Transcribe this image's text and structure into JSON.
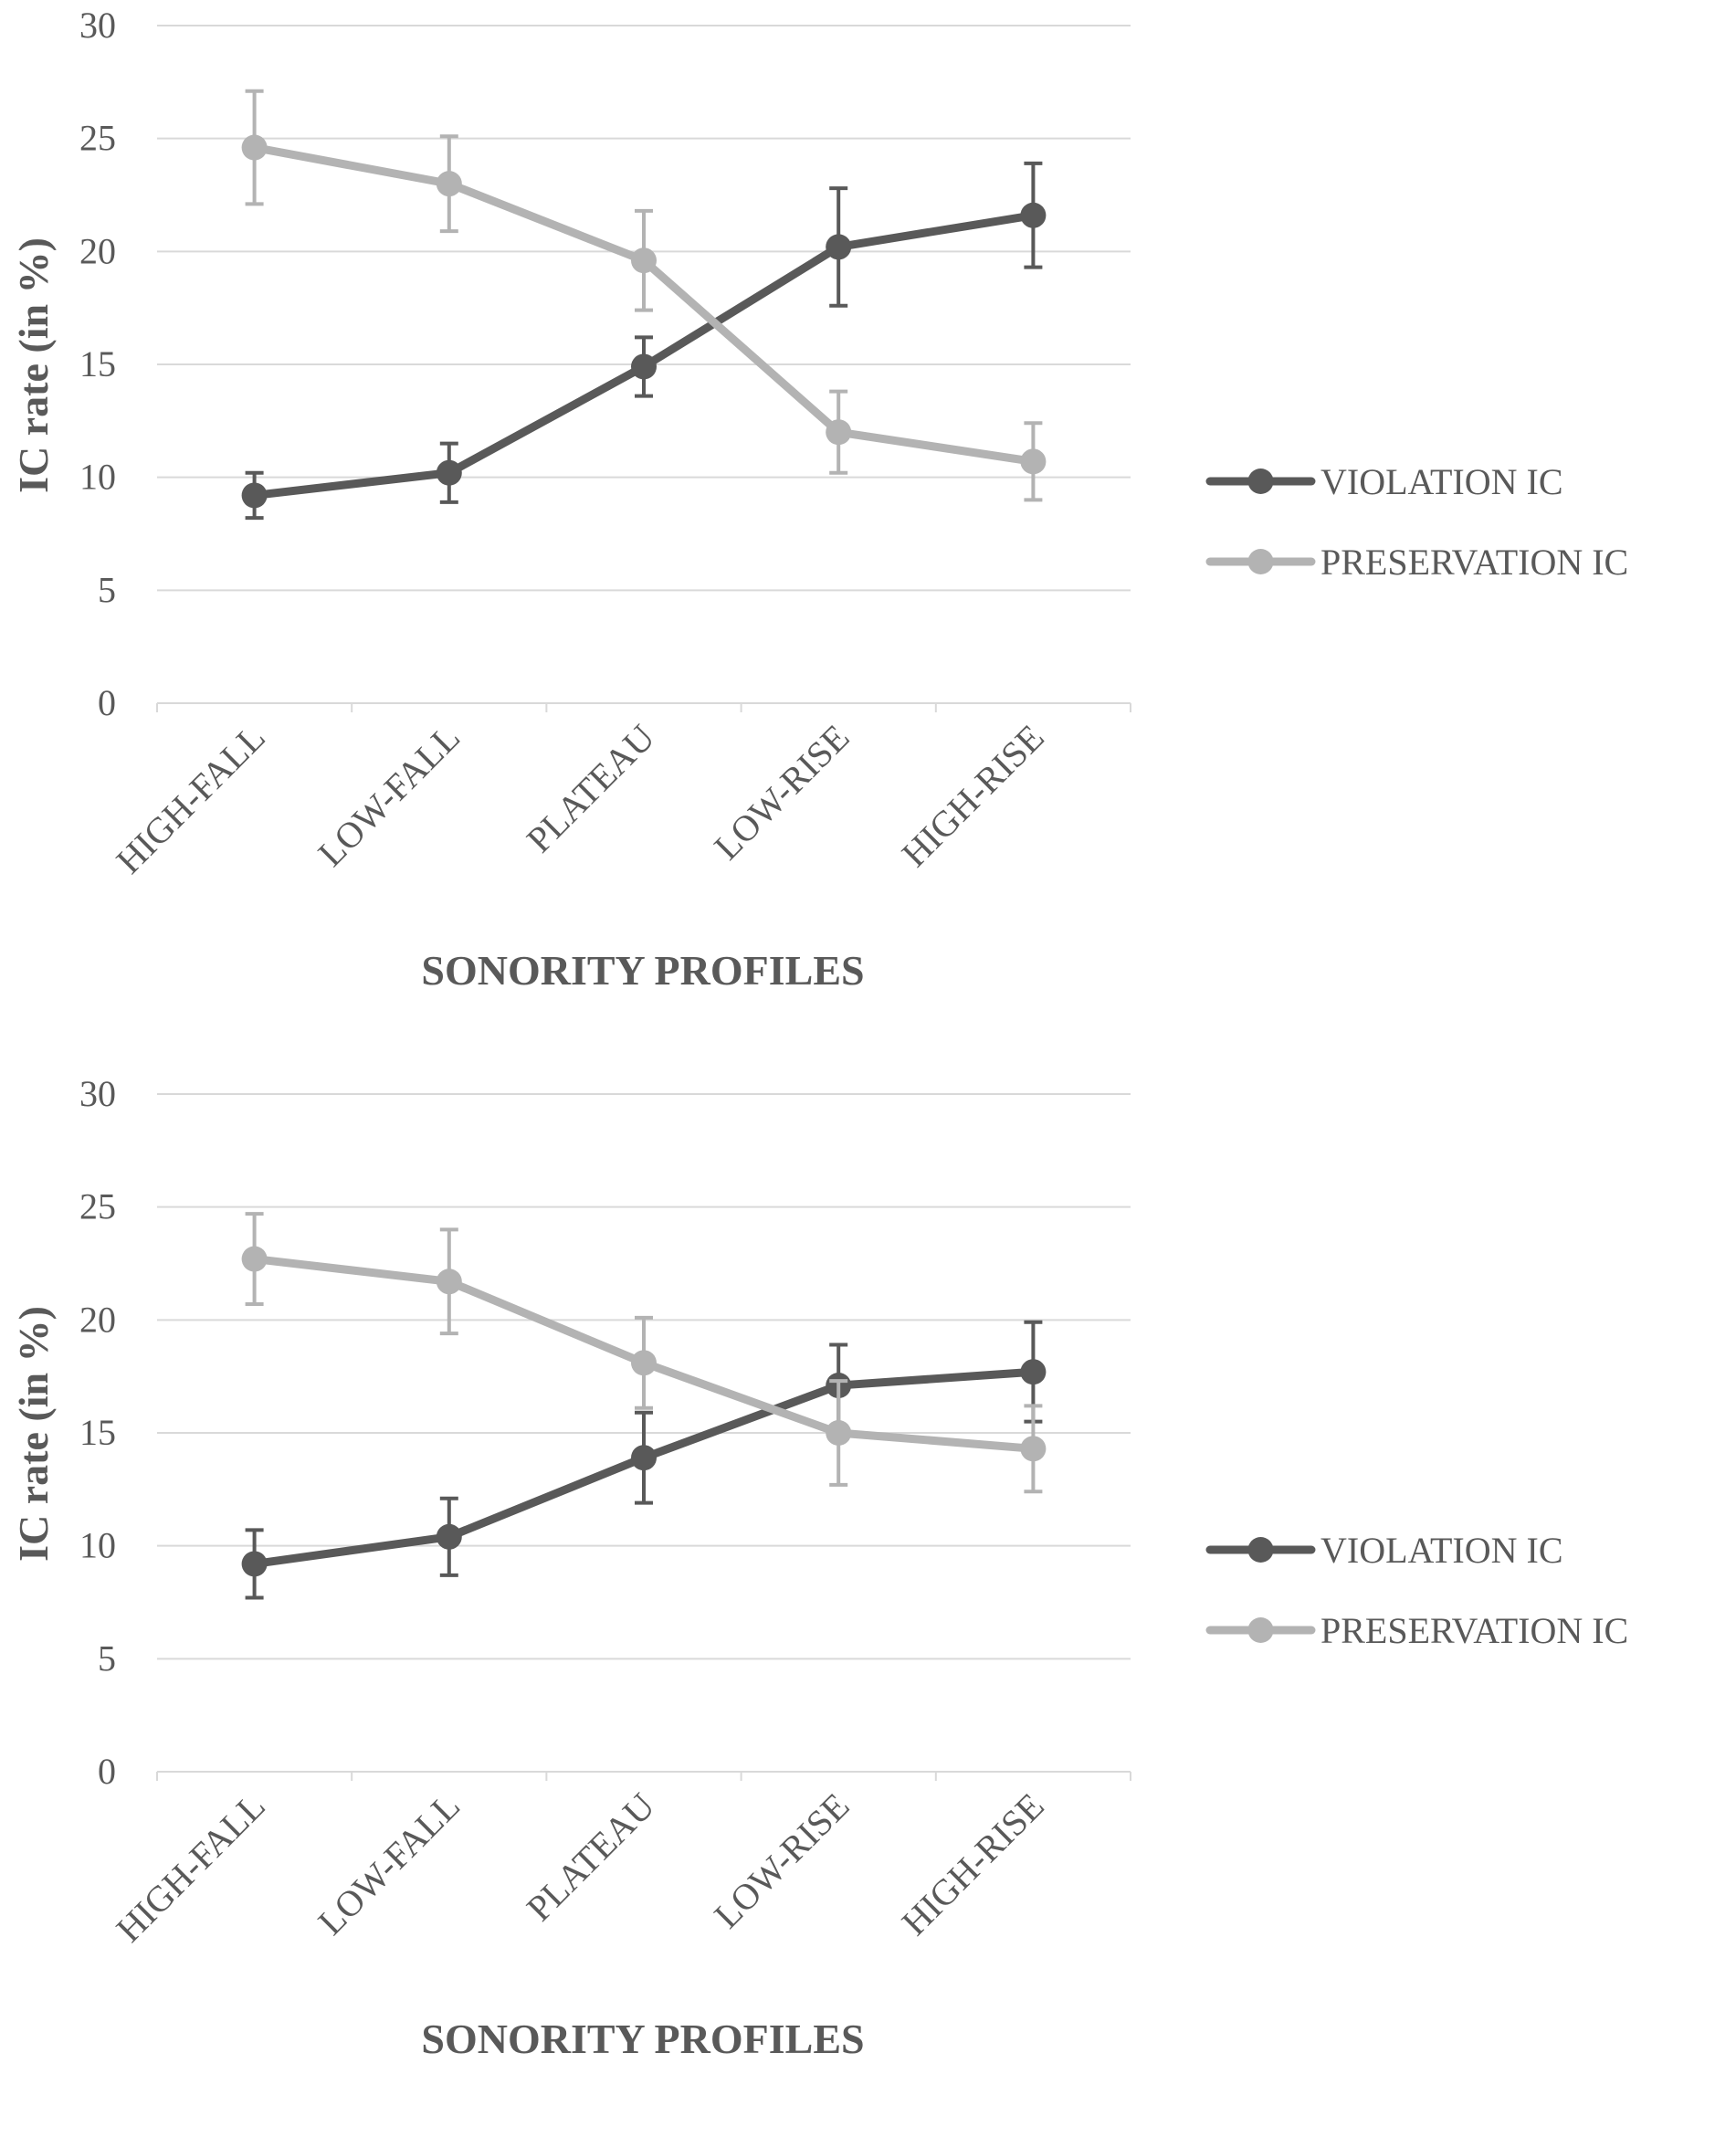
{
  "chart_data": [
    {
      "type": "line",
      "title": "",
      "xlabel": "SONORITY PROFILES",
      "ylabel": "IC rate (in %)",
      "ylim": [
        0,
        30
      ],
      "yticks": [
        0,
        5,
        10,
        15,
        20,
        25,
        30
      ],
      "grid": true,
      "legend_position": "right",
      "categories": [
        "HIGH-FALL",
        "LOW-FALL",
        "PLATEAU",
        "LOW-RISE",
        "HIGH-RISE"
      ],
      "series": [
        {
          "name": "VIOLATION IC",
          "color": "#595959",
          "values": [
            9.2,
            10.2,
            14.9,
            20.2,
            21.6
          ],
          "error": [
            1.0,
            1.3,
            1.3,
            2.6,
            2.3
          ]
        },
        {
          "name": "PRESERVATION IC",
          "color": "#b3b3b3",
          "values": [
            24.6,
            23.0,
            19.6,
            12.0,
            10.7
          ],
          "error": [
            2.5,
            2.1,
            2.2,
            1.8,
            1.7
          ]
        }
      ]
    },
    {
      "type": "line",
      "title": "",
      "xlabel": "SONORITY PROFILES",
      "ylabel": "IC rate (in %)",
      "ylim": [
        0,
        30
      ],
      "yticks": [
        0,
        5,
        10,
        15,
        20,
        25,
        30
      ],
      "grid": true,
      "legend_position": "right",
      "categories": [
        "HIGH-FALL",
        "LOW-FALL",
        "PLATEAU",
        "LOW-RISE",
        "HIGH-RISE"
      ],
      "series": [
        {
          "name": "VIOLATION IC",
          "color": "#595959",
          "values": [
            9.2,
            10.4,
            13.9,
            17.1,
            17.7
          ],
          "error": [
            1.5,
            1.7,
            2.0,
            1.8,
            2.2
          ]
        },
        {
          "name": "PRESERVATION IC",
          "color": "#b3b3b3",
          "values": [
            22.7,
            21.7,
            18.1,
            15.0,
            14.3
          ],
          "error": [
            2.0,
            2.3,
            2.0,
            2.3,
            1.9
          ]
        }
      ]
    }
  ]
}
